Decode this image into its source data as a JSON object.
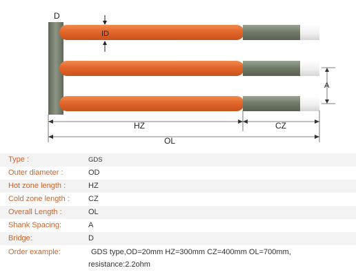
{
  "diagram": {
    "label_d": "D",
    "label_id": "ID",
    "label_a": "A",
    "label_hz": "HZ",
    "label_cz": "CZ",
    "label_ol": "OL",
    "colors": {
      "hot_zone": "#e2662a",
      "cold_zone": "#7a8470",
      "bridge": "#7a8470",
      "tip": "#f2f2f2",
      "dimension_line": "#555555"
    }
  },
  "specs": [
    {
      "label": "Type :",
      "value": "GDS"
    },
    {
      "label": "Outer diameter :",
      "value": "OD"
    },
    {
      "label": "Hot zone length :",
      "value": "HZ"
    },
    {
      "label": "Cold zone length :",
      "value": "CZ"
    },
    {
      "label": "Overall Length :",
      "value": "OL"
    },
    {
      "label": "Shank Spacing:",
      "value": "A"
    },
    {
      "label": "Bridge:",
      "value": "D"
    },
    {
      "label": "Order example:",
      "value": "GDS type,OD=20mm HZ=300mm CZ=400mm OL=700mm,",
      "value2": "resistance:2.2ohm"
    }
  ]
}
